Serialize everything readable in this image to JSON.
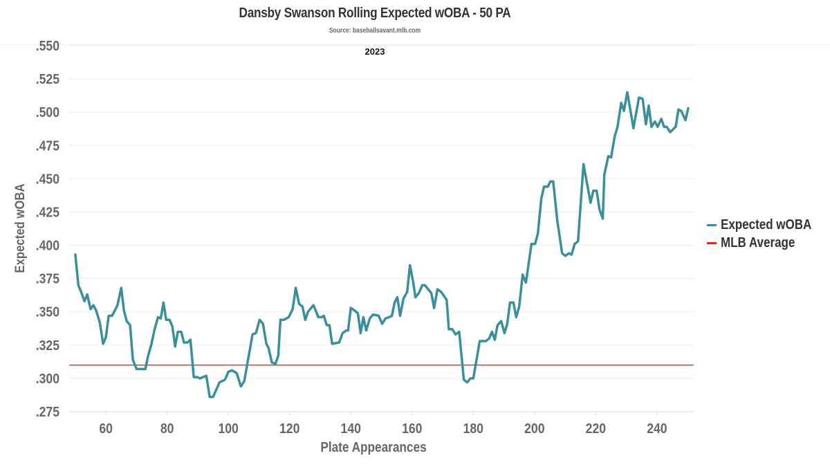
{
  "chart_data": {
    "type": "line",
    "title": "Dansby Swanson Rolling Expected wOBA - 50 PA",
    "subtitle": "Source: baseballsavant.mlb.com",
    "annotation": "2023",
    "xlabel": "Plate Appearances",
    "ylabel": "Expected wOBA",
    "xlim": [
      48,
      252
    ],
    "ylim": [
      0.275,
      0.55
    ],
    "xticks": [
      60,
      80,
      100,
      120,
      140,
      160,
      180,
      200,
      220,
      240
    ],
    "xtick_labels": [
      "60",
      "80",
      "100",
      "120",
      "140",
      "160",
      "180",
      "200",
      "220",
      "240"
    ],
    "yticks": [
      0.275,
      0.3,
      0.325,
      0.35,
      0.375,
      0.4,
      0.425,
      0.45,
      0.475,
      0.5,
      0.525,
      0.55
    ],
    "ytick_labels": [
      ".275",
      ".300",
      ".325",
      ".350",
      ".375",
      ".400",
      ".425",
      ".450",
      ".475",
      ".500",
      ".525",
      ".550"
    ],
    "grid": true,
    "legend_position": "right",
    "series": [
      {
        "name": "Expected wOBA",
        "color": "#3a8f9a",
        "x": [
          50,
          51,
          51.9,
          53,
          53.9,
          55,
          55.9,
          56.8,
          58,
          59.1,
          60,
          60.9,
          62,
          62.9,
          63.8,
          65,
          65.9,
          66.8,
          67.9,
          68.8,
          70,
          72.9,
          73.8,
          74.9,
          75.8,
          77,
          77.9,
          78.8,
          79.7,
          80.8,
          81.7,
          82.6,
          83.5,
          84.6,
          85.5,
          86.7,
          87.6,
          88.7,
          89.8,
          90.7,
          92.8,
          93.9,
          95,
          97.1,
          98.9,
          100,
          101.2,
          102.7,
          104.1,
          105.2,
          107.9,
          109,
          110.2,
          111.3,
          112.4,
          113.1,
          114.2,
          115.4,
          116.3,
          117,
          118.1,
          119.7,
          121,
          122,
          123.1,
          124.2,
          125.1,
          126,
          127.8,
          129.4,
          130.5,
          131.2,
          132.1,
          133,
          133.9,
          136.2,
          137.3,
          138.5,
          139.1,
          140,
          141.2,
          142.3,
          143.2,
          144.1,
          145,
          146.2,
          147.3,
          149.1,
          150.2,
          151.3,
          152.5,
          153.4,
          154.3,
          155.2,
          156.1,
          157.2,
          158.4,
          159.3,
          160.4,
          161.1,
          162.2,
          163.3,
          164.2,
          166.3,
          167.2,
          168.3,
          169.5,
          171.3,
          172,
          173.1,
          174.2,
          175.4,
          176.9,
          178,
          179.1,
          180,
          182.1,
          184.1,
          185.2,
          186.1,
          187,
          187.9,
          189.1,
          190.2,
          191.1,
          192,
          193.1,
          194,
          195,
          196.1,
          197.2,
          199,
          200.2,
          201.1,
          202.2,
          203.1,
          204.3,
          205.2,
          206.1,
          207.4,
          209,
          210.1,
          211.2,
          212.1,
          213.1,
          214.2,
          216,
          218.3,
          219.2,
          220.3,
          221.2,
          222.3,
          222.8,
          224.1,
          225,
          226.2,
          227.1,
          228.3,
          229.2,
          230.3,
          231.2,
          232.3,
          234.1,
          235.3,
          236.4,
          237.3,
          238.2,
          239.3,
          240.2,
          241.4,
          242.3,
          243.2,
          244.3,
          246.1,
          247,
          247.9,
          249.3,
          250.2
        ],
        "y": [
          0.393,
          0.37,
          0.365,
          0.358,
          0.363,
          0.352,
          0.355,
          0.351,
          0.342,
          0.326,
          0.331,
          0.347,
          0.347,
          0.351,
          0.355,
          0.368,
          0.351,
          0.343,
          0.34,
          0.314,
          0.307,
          0.307,
          0.317,
          0.326,
          0.336,
          0.346,
          0.345,
          0.357,
          0.344,
          0.344,
          0.339,
          0.324,
          0.335,
          0.335,
          0.327,
          0.327,
          0.329,
          0.301,
          0.301,
          0.3,
          0.302,
          0.286,
          0.286,
          0.297,
          0.299,
          0.305,
          0.306,
          0.304,
          0.294,
          0.298,
          0.333,
          0.334,
          0.344,
          0.341,
          0.326,
          0.323,
          0.312,
          0.311,
          0.317,
          0.344,
          0.344,
          0.346,
          0.352,
          0.368,
          0.356,
          0.354,
          0.344,
          0.35,
          0.355,
          0.346,
          0.346,
          0.347,
          0.34,
          0.34,
          0.326,
          0.327,
          0.334,
          0.336,
          0.336,
          0.353,
          0.351,
          0.349,
          0.334,
          0.346,
          0.336,
          0.345,
          0.348,
          0.347,
          0.341,
          0.345,
          0.346,
          0.347,
          0.357,
          0.361,
          0.347,
          0.36,
          0.365,
          0.385,
          0.372,
          0.361,
          0.364,
          0.37,
          0.37,
          0.364,
          0.353,
          0.367,
          0.365,
          0.359,
          0.337,
          0.337,
          0.333,
          0.335,
          0.299,
          0.297,
          0.3,
          0.3,
          0.328,
          0.328,
          0.33,
          0.335,
          0.329,
          0.34,
          0.343,
          0.334,
          0.341,
          0.357,
          0.357,
          0.346,
          0.354,
          0.378,
          0.372,
          0.401,
          0.401,
          0.409,
          0.435,
          0.444,
          0.444,
          0.448,
          0.448,
          0.419,
          0.394,
          0.392,
          0.394,
          0.393,
          0.401,
          0.403,
          0.461,
          0.432,
          0.441,
          0.441,
          0.427,
          0.42,
          0.453,
          0.467,
          0.466,
          0.482,
          0.489,
          0.507,
          0.501,
          0.515,
          0.503,
          0.488,
          0.511,
          0.51,
          0.491,
          0.505,
          0.489,
          0.493,
          0.489,
          0.495,
          0.489,
          0.489,
          0.485,
          0.489,
          0.502,
          0.501,
          0.494,
          0.503
        ]
      },
      {
        "name": "MLB Average",
        "color": "#d62b1f",
        "constant": 0.31
      }
    ]
  }
}
